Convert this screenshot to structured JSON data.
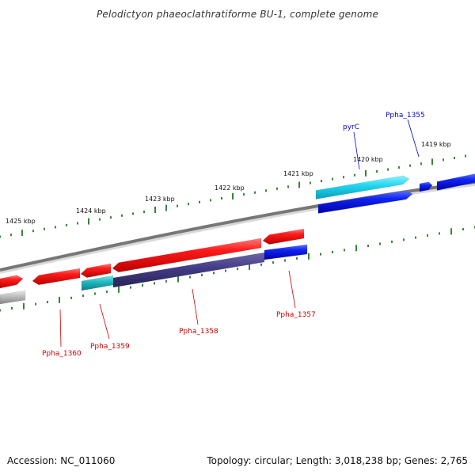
{
  "header": {
    "title": "Pelodictyon phaeoclathratiforme BU-1, complete genome"
  },
  "colors": {
    "backbone": "#777777",
    "tick": "#227722",
    "positive_label": "#0000cc",
    "negative_label": "#cc0000",
    "red_feature": "#ee1111",
    "blue_feature": "#0a19e6",
    "cyan_feature": "#18c7e6",
    "teal_feature": "#20b8c0",
    "purple_feature": "#453d85",
    "gray_feature": "#b0b0b0"
  },
  "map": {
    "scale_labels": [
      "1419 kbp",
      "1420 kbp",
      "1421 kbp",
      "1422 kbp",
      "1423 kbp",
      "1424 kbp",
      "1425 kbp"
    ],
    "positive_strand_features": [
      {
        "label": "pyrC",
        "color": "cyan"
      },
      {
        "label": "Ppha_1355",
        "color": "blue"
      }
    ],
    "negative_strand_features": [
      {
        "label": "Ppha_1357",
        "color": "blue"
      },
      {
        "label": "Ppha_1358",
        "color": "purple"
      },
      {
        "label": "Ppha_1359",
        "color": "teal"
      },
      {
        "label": "Ppha_1360",
        "color": "red"
      }
    ]
  },
  "footer": {
    "accession": "Accession: NC_011060",
    "summary": "Topology: circular; Length: 3,018,238 bp; Genes: 2,765"
  }
}
